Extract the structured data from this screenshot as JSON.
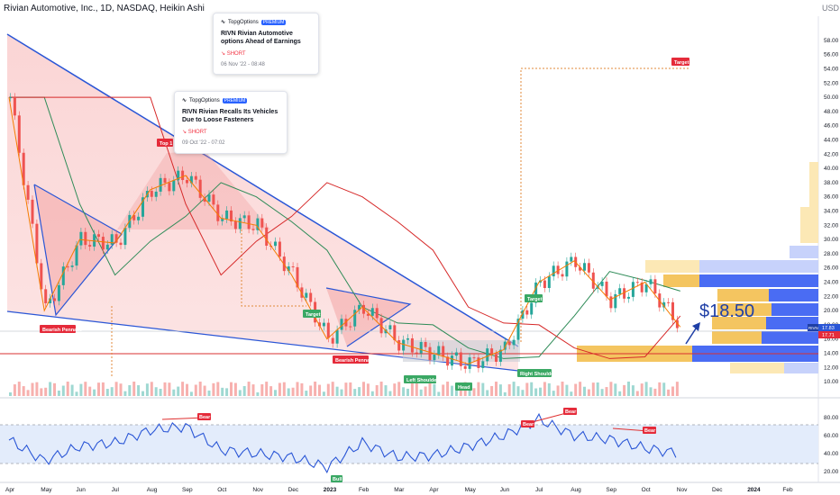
{
  "header": {
    "title": "Rivian Automotive, Inc., 1D, NASDAQ, Heikin Ashi",
    "currency": "USD"
  },
  "price_big": "$18.50",
  "cards": [
    {
      "brand": "TopgOptions",
      "badge": "PREMIUM",
      "title": "RIVN Rivian Automotive options Ahead of Earnings",
      "signal": "SHORT",
      "time": "06 Nov '22 - 08:48"
    },
    {
      "brand": "TopgOptions",
      "badge": "PREMIUM",
      "title": "RIVN  Rivian Recalls Its Vehicles Due to Loose Fasteners",
      "signal": "SHORT",
      "time": "09 Oct '22 - 07:02"
    }
  ],
  "labels": {
    "top1": "Top 1",
    "target_top": "Target",
    "target_mid": "Target",
    "target_right": "Target",
    "bearish_pennant_1": "Bearish Pennant",
    "bearish_pennant_2": "Bearish Pennant",
    "left_shoulder": "Left Shoulder",
    "head": "Head",
    "right_shoulder": "Right Shoulder",
    "bull": "Bull",
    "bear": "Bear",
    "ticker_tag": "RIVN",
    "price_tag_1": "17.83",
    "price_tag_2": "17.71"
  },
  "chart_data": [
    {
      "type": "line",
      "title": "Rivian Automotive, Inc., 1D, NASDAQ, Heikin Ashi",
      "x_labels": [
        "Apr",
        "May",
        "Jun",
        "Jul",
        "Aug",
        "Sep",
        "Oct",
        "Nov",
        "Dec",
        "2023",
        "Feb",
        "Mar",
        "Apr",
        "May",
        "Jun",
        "Jul",
        "Aug",
        "Sep",
        "Oct",
        "Nov",
        "Dec",
        "2024",
        "Feb"
      ],
      "y_ticks": [
        10,
        12,
        14,
        16,
        18,
        20,
        22,
        24,
        26,
        28,
        30,
        32,
        34,
        36,
        38,
        40,
        42,
        44,
        46,
        48,
        50,
        52,
        54,
        56,
        58
      ],
      "ylim": [
        9,
        59
      ],
      "series": [
        {
          "x": [
            "Apr",
            "May",
            "Jun",
            "Jul",
            "Aug",
            "Sep",
            "Oct",
            "Nov",
            "Dec",
            "2023",
            "Feb",
            "Mar",
            "Apr",
            "May",
            "Jun",
            "Jul",
            "Aug",
            "Sep",
            "Oct",
            "Nov"
          ],
          "values": [
            50.0,
            20.0,
            30.0,
            29.5,
            37.0,
            39.0,
            33.0,
            32.0,
            25.0,
            16.0,
            20.5,
            15.5,
            14.0,
            12.5,
            14.5,
            24.0,
            27.0,
            21.5,
            24.0,
            17.7
          ]
        }
      ],
      "annotations": [
        "Top 1",
        "Target",
        "Bearish Pennant",
        "Left Shoulder",
        "Head",
        "Right Shoulder",
        "$18.50"
      ]
    },
    {
      "type": "line",
      "y_ticks": [
        20.0,
        40.0,
        60.0,
        80.0
      ],
      "ylim": [
        15,
        90
      ],
      "series": [
        {
          "x": [
            "Apr",
            "May",
            "Jun",
            "Jul",
            "Aug",
            "Sep",
            "Oct",
            "Nov",
            "Dec",
            "2023",
            "Feb",
            "Mar",
            "Apr",
            "May",
            "Jun",
            "Jul",
            "Aug",
            "Sep",
            "Oct",
            "Nov"
          ],
          "values": [
            55,
            32,
            48,
            52,
            66,
            70,
            44,
            40,
            36,
            25,
            52,
            36,
            38,
            48,
            60,
            78,
            60,
            56,
            46,
            40
          ]
        }
      ],
      "annotations": [
        "Bear",
        "Bear",
        "Bear",
        "Bull"
      ]
    }
  ]
}
